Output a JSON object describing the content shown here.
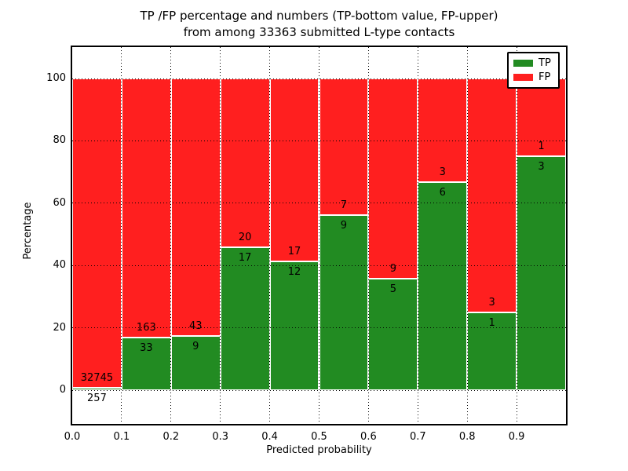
{
  "chart_data": {
    "type": "bar",
    "stacked": true,
    "title_line1": "TP /FP percentage and numbers (TP-bottom value, FP-upper)",
    "title_line2": "from among 33363 submitted L-type contacts",
    "xlabel": "Predicted probability",
    "ylabel": "Percentage",
    "total_contacts": 33363,
    "xlim": [
      0.0,
      1.0
    ],
    "ylim": [
      -11,
      110
    ],
    "x_tick_labels": [
      "0.0",
      "0.1",
      "0.2",
      "0.3",
      "0.4",
      "0.5",
      "0.6",
      "0.7",
      "0.8",
      "0.9"
    ],
    "y_tick_values": [
      0,
      20,
      40,
      60,
      80,
      100
    ],
    "y_tick_labels": [
      "0",
      "20",
      "40",
      "60",
      "80",
      "100"
    ],
    "grid": "dotted black, drawn above bars",
    "bar_edge_color": "#ffffff",
    "colors": {
      "tp": "#228b22",
      "fp": "#ff1f1f"
    },
    "legend": {
      "position": "upper right",
      "entries": [
        {
          "label": "TP",
          "color": "#228b22"
        },
        {
          "label": "FP",
          "color": "#ff1f1f"
        }
      ]
    },
    "bins": [
      {
        "range": "0.0-0.1",
        "tp_count": 257,
        "fp_count": 32745,
        "tp_pct": 0.78
      },
      {
        "range": "0.1-0.2",
        "tp_count": 33,
        "fp_count": 163,
        "tp_pct": 16.84
      },
      {
        "range": "0.2-0.3",
        "tp_count": 9,
        "fp_count": 43,
        "tp_pct": 17.31
      },
      {
        "range": "0.3-0.4",
        "tp_count": 17,
        "fp_count": 20,
        "tp_pct": 45.95
      },
      {
        "range": "0.4-0.5",
        "tp_count": 12,
        "fp_count": 17,
        "tp_pct": 41.38
      },
      {
        "range": "0.5-0.6",
        "tp_count": 9,
        "fp_count": 7,
        "tp_pct": 56.25
      },
      {
        "range": "0.6-0.7",
        "tp_count": 5,
        "fp_count": 9,
        "tp_pct": 35.71
      },
      {
        "range": "0.7-0.8",
        "tp_count": 6,
        "fp_count": 3,
        "tp_pct": 66.67
      },
      {
        "range": "0.8-0.9",
        "tp_count": 1,
        "fp_count": 3,
        "tp_pct": 25.0
      },
      {
        "range": "0.9-1.0",
        "tp_count": 3,
        "fp_count": 1,
        "tp_pct": 75.0
      }
    ]
  }
}
